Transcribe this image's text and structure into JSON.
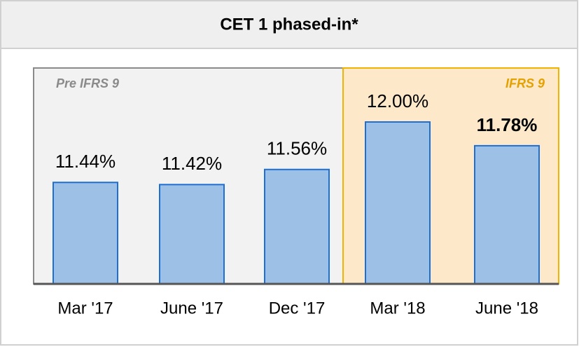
{
  "chart_data": {
    "type": "bar",
    "title": "CET 1  phased-in*",
    "categories": [
      "Mar '17",
      "June '17",
      "Dec '17",
      "Mar '18",
      "June '18"
    ],
    "values": [
      11.44,
      11.42,
      11.56,
      12.0,
      11.78
    ],
    "value_labels": [
      "11.44%",
      "11.42%",
      "11.56%",
      "12.00%",
      "11.78%"
    ],
    "color": "#9dc0e6",
    "ylim": [
      10.5,
      12.5
    ],
    "annotations": [
      "Pre IFRS 9",
      "IFRS 9"
    ]
  }
}
